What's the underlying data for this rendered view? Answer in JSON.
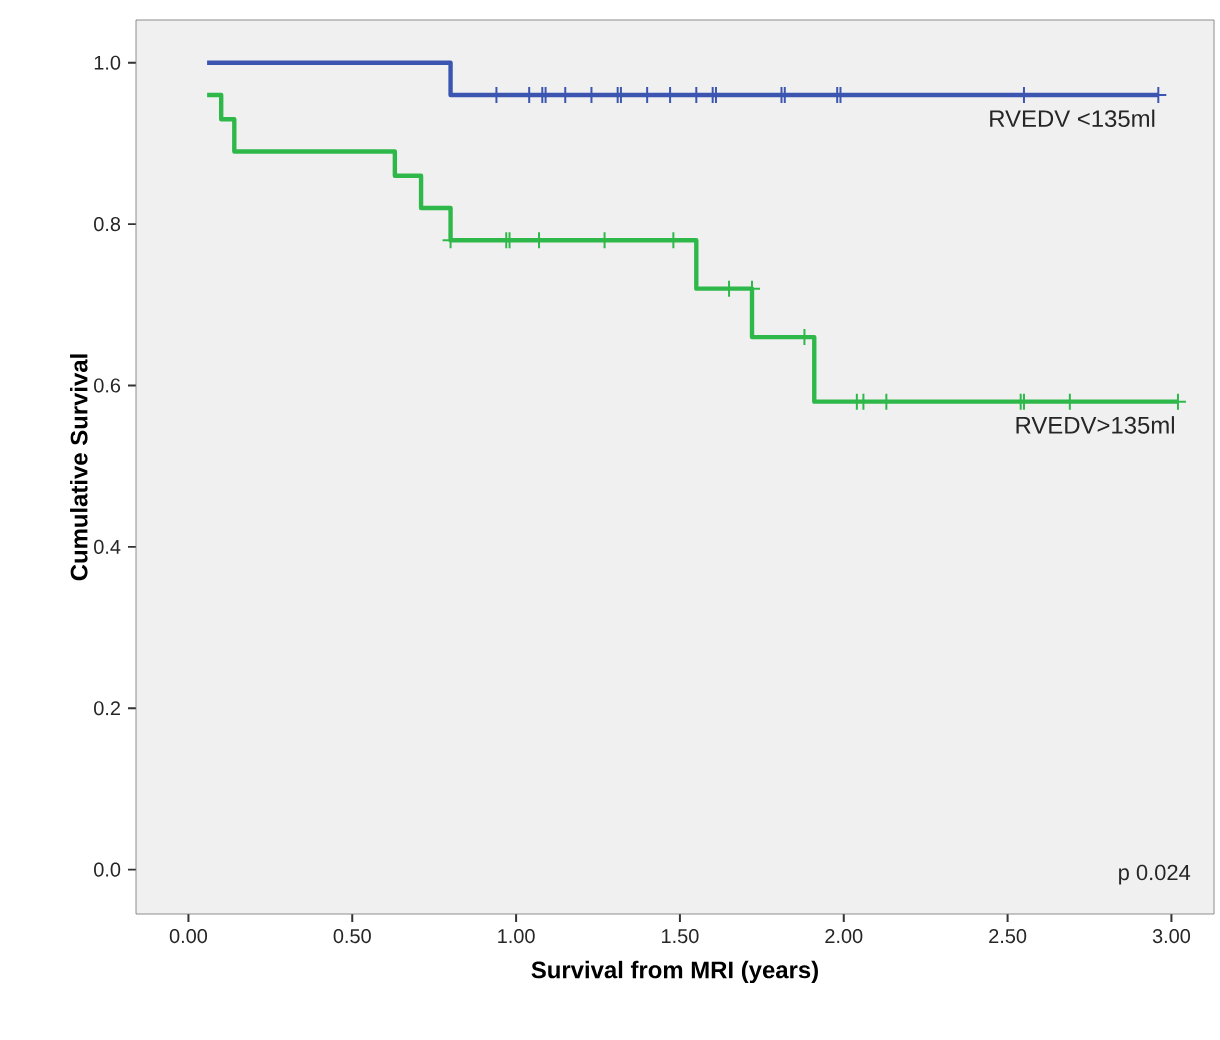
{
  "chart_data": {
    "type": "step",
    "xlabel": "Survival from MRI (years)",
    "ylabel": "Cumulative Survival",
    "xlim": [
      -0.16,
      3.13
    ],
    "ylim": [
      -0.055,
      1.053
    ],
    "xticks": [
      {
        "value": 0,
        "label": "0.00"
      },
      {
        "value": 0.5,
        "label": "0.50"
      },
      {
        "value": 1,
        "label": "1.00"
      },
      {
        "value": 1.5,
        "label": "1.50"
      },
      {
        "value": 2,
        "label": "2.00"
      },
      {
        "value": 2.5,
        "label": "2.50"
      },
      {
        "value": 3,
        "label": "3.00"
      }
    ],
    "yticks": [
      {
        "value": 0,
        "label": "0.0"
      },
      {
        "value": 0.2,
        "label": "0.2"
      },
      {
        "value": 0.4,
        "label": "0.4"
      },
      {
        "value": 0.6,
        "label": "0.6"
      },
      {
        "value": 0.8,
        "label": "0.8"
      },
      {
        "value": 1,
        "label": "1.0"
      }
    ],
    "grid": false,
    "legend": "right",
    "marker": "none",
    "line_style": "solid",
    "series": [
      {
        "name": "RVEDV <135ml",
        "color": "#3c55b0",
        "x": [
          0.057,
          0.8,
          2.96
        ],
        "values": [
          1.0,
          0.96,
          0.96
        ]
      },
      {
        "name": "RVEDV>135ml",
        "color": "#2fb84a",
        "x": [
          0.057,
          0.1,
          0.14,
          0.63,
          0.71,
          0.8,
          1.55,
          1.72,
          1.91,
          3.02
        ],
        "values": [
          0.96,
          0.93,
          0.89,
          0.86,
          0.82,
          0.78,
          0.72,
          0.66,
          0.58,
          0.58
        ]
      },
      {
        "type": "scatter",
        "marker": "cross",
        "color": "#3c55b0",
        "x": [
          0.94,
          1.04,
          1.08,
          1.09,
          1.15,
          1.23,
          1.31,
          1.32,
          1.4,
          1.47,
          1.55,
          1.6,
          1.61,
          1.81,
          1.82,
          1.98,
          1.99,
          2.55,
          2.96
        ],
        "values": [
          0.96,
          0.96,
          0.96,
          0.96,
          0.96,
          0.96,
          0.96,
          0.96,
          0.96,
          0.96,
          0.96,
          0.96,
          0.96,
          0.96,
          0.96,
          0.96,
          0.96,
          0.96,
          0.96
        ]
      },
      {
        "type": "scatter",
        "marker": "cross",
        "color": "#2fb84a",
        "x": [
          0.8,
          0.97,
          0.98,
          1.07,
          1.27,
          1.48,
          1.65,
          1.72,
          1.88,
          2.04,
          2.06,
          2.13,
          2.54,
          2.55,
          2.69,
          3.02
        ],
        "values": [
          0.78,
          0.78,
          0.78,
          0.78,
          0.78,
          0.78,
          0.72,
          0.72,
          0.66,
          0.58,
          0.58,
          0.58,
          0.58,
          0.58,
          0.58,
          0.58
        ]
      }
    ],
    "annotations": [
      "p 0.024"
    ]
  }
}
